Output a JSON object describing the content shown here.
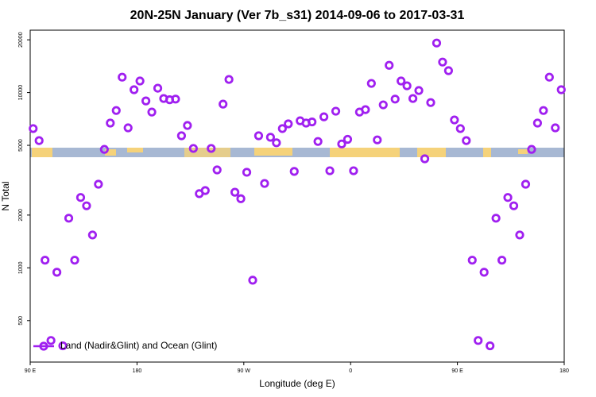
{
  "chart_data": {
    "type": "scatter",
    "title": "20N-25N January (Ver 7b_s31)   2014-09-06 to 2017-03-31",
    "x_label": "Longitude (deg E)",
    "y_label": "N Total",
    "log_y": true,
    "xlim": [
      90,
      540
    ],
    "ylim": [
      290,
      22700
    ],
    "xticks": [
      {
        "value": 90,
        "label": "90 E"
      },
      180,
      {
        "value": 270,
        "label": "90 W"
      },
      {
        "value": 360,
        "label": "0"
      },
      {
        "value": 450,
        "label": "90 E"
      },
      {
        "value": 540,
        "label": "180"
      }
    ],
    "yticks": [
      500,
      1000,
      2000,
      5000,
      10000,
      20000
    ],
    "legend": "bottom-left",
    "series": [
      {
        "name": "Land (Nadir&Glint) and Ocean (Glint)",
        "color": "#a020f0",
        "x": [
          92.5,
          97.5,
          102.5,
          107.5,
          112.5,
          117.5,
          122.5,
          127.5,
          132.5,
          137.5,
          142.5,
          147.5,
          152.5,
          157.5,
          162.5,
          167.5,
          172.5,
          177.5,
          182.5,
          187.5,
          192.5,
          197.5,
          202.5,
          207.5,
          212.5,
          217.5,
          222.5,
          227.5,
          232.5,
          237.5,
          242.5,
          247.5,
          252.5,
          257.5,
          262.5,
          267.5,
          272.5,
          277.5,
          282.5,
          287.5,
          292.5,
          297.5,
          302.5,
          307.5,
          312.5,
          317.5,
          322.5,
          327.5,
          332.5,
          337.5,
          342.5,
          347.5,
          352.5,
          357.5,
          362.5,
          367.5,
          372.5,
          377.5,
          382.5,
          387.5,
          392.5,
          397.5,
          402.5,
          407.5,
          412.5,
          417.5,
          422.5,
          427.5,
          432.5,
          437.5,
          442.5,
          447.5,
          452.5,
          457.5,
          462.5,
          467.5,
          472.5,
          477.5,
          482.5,
          487.5,
          492.5,
          497.5,
          502.5,
          507.5,
          512.5,
          517.5,
          522.5,
          527.5,
          532.5,
          537.5
        ],
        "values": [
          6230,
          5320,
          1106,
          385,
          944,
          359,
          1920,
          1106,
          2520,
          2260,
          1540,
          3000,
          4740,
          6700,
          7900,
          12240,
          6290,
          10380,
          11640,
          8960,
          7740,
          10590,
          9250,
          9100,
          9180,
          5670,
          6490,
          4800,
          2650,
          2760,
          4800,
          3620,
          8590,
          11880,
          2700,
          2480,
          3510,
          850,
          5670,
          3030,
          5560,
          5170,
          6230,
          6630,
          3550,
          6900,
          6700,
          6800,
          5260,
          7270,
          3580,
          7830,
          5090,
          5410,
          3580,
          7740,
          7990,
          11280,
          5370,
          8510,
          14310,
          9180,
          11640,
          10930,
          9250,
          10270,
          4190,
          8770,
          19170,
          14930,
          13330,
          6980,
          6230,
          5320,
          1106,
          385,
          944,
          359,
          1920,
          1106,
          2520,
          2260,
          1540,
          3000,
          4740,
          6700,
          7900,
          12240,
          6290,
          10380
        ]
      }
    ]
  }
}
